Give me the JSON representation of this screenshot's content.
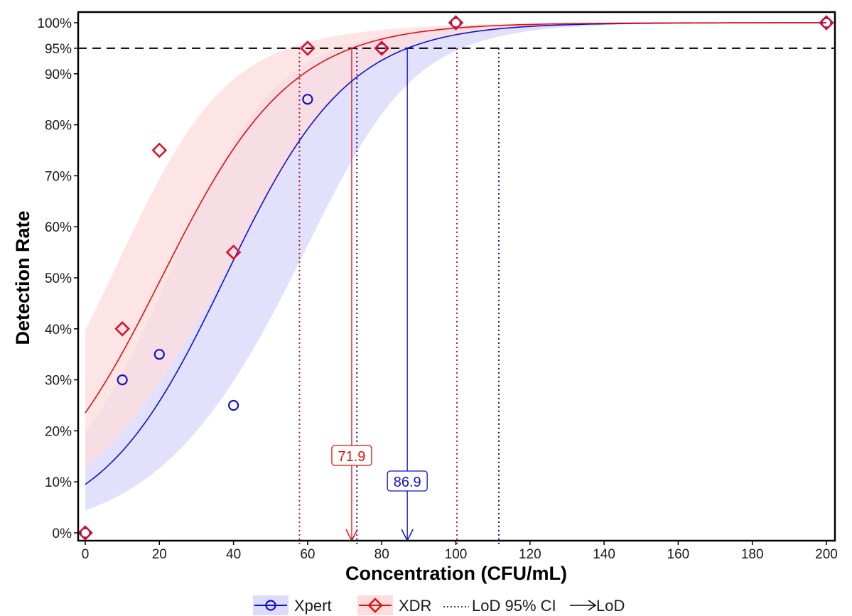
{
  "chart_data": {
    "type": "scatter",
    "title": "",
    "xlabel": "Concentration (CFU/mL)",
    "ylabel": "Detection Rate",
    "xlim": [
      -2,
      202
    ],
    "ylim": [
      -2.5,
      102
    ],
    "grid": false,
    "x_ticks": [
      0,
      20,
      40,
      60,
      80,
      100,
      120,
      140,
      160,
      180,
      200
    ],
    "y_ticks": [
      0,
      10,
      20,
      30,
      40,
      50,
      60,
      70,
      80,
      90,
      95,
      100
    ],
    "y_tick_format": "percent",
    "reference_line": {
      "y": 95,
      "style": "dashed",
      "color": "#000000"
    },
    "legend_position": "bottom",
    "series": [
      {
        "name": "Xpert",
        "color": "#1010cc",
        "band_color": "#dcdcfa",
        "marker": "circle",
        "points": [
          {
            "x": 0,
            "y": 0
          },
          {
            "x": 10,
            "y": 30
          },
          {
            "x": 20,
            "y": 35
          },
          {
            "x": 40,
            "y": 25
          },
          {
            "x": 60,
            "y": 85
          },
          {
            "x": 80,
            "y": 95
          },
          {
            "x": 100,
            "y": 100
          },
          {
            "x": 200,
            "y": 100
          }
        ],
        "fit": {
          "model": "logistic",
          "intercept": -2.254,
          "slope": 0.0598,
          "ci_logit_lower": -0.8,
          "ci_logit_upper": 0.84
        },
        "lod": 86.9,
        "lod_label": "86.9",
        "lod_ci": [
          73.3,
          111.6
        ]
      },
      {
        "name": "XDR",
        "color": "#e01010",
        "band_color": "#fcdcdc",
        "marker": "diamond",
        "points": [
          {
            "x": 0,
            "y": 0
          },
          {
            "x": 10,
            "y": 40
          },
          {
            "x": 20,
            "y": 75
          },
          {
            "x": 40,
            "y": 55
          },
          {
            "x": 60,
            "y": 95
          },
          {
            "x": 80,
            "y": 95
          },
          {
            "x": 100,
            "y": 100
          },
          {
            "x": 200,
            "y": 100
          }
        ],
        "fit": {
          "model": "logistic",
          "intercept": -1.179,
          "slope": 0.0573,
          "ci_logit_lower": -0.72,
          "ci_logit_upper": 0.73
        },
        "lod": 71.9,
        "lod_label": "71.9",
        "lod_ci": [
          57.8,
          100.3
        ]
      }
    ],
    "legend": [
      {
        "label": "Xpert",
        "kind": "series",
        "series": 0
      },
      {
        "label": "XDR",
        "kind": "series",
        "series": 1
      },
      {
        "label": "LoD 95% CI",
        "kind": "dotted-line"
      },
      {
        "label": "LoD",
        "kind": "arrow"
      }
    ]
  }
}
